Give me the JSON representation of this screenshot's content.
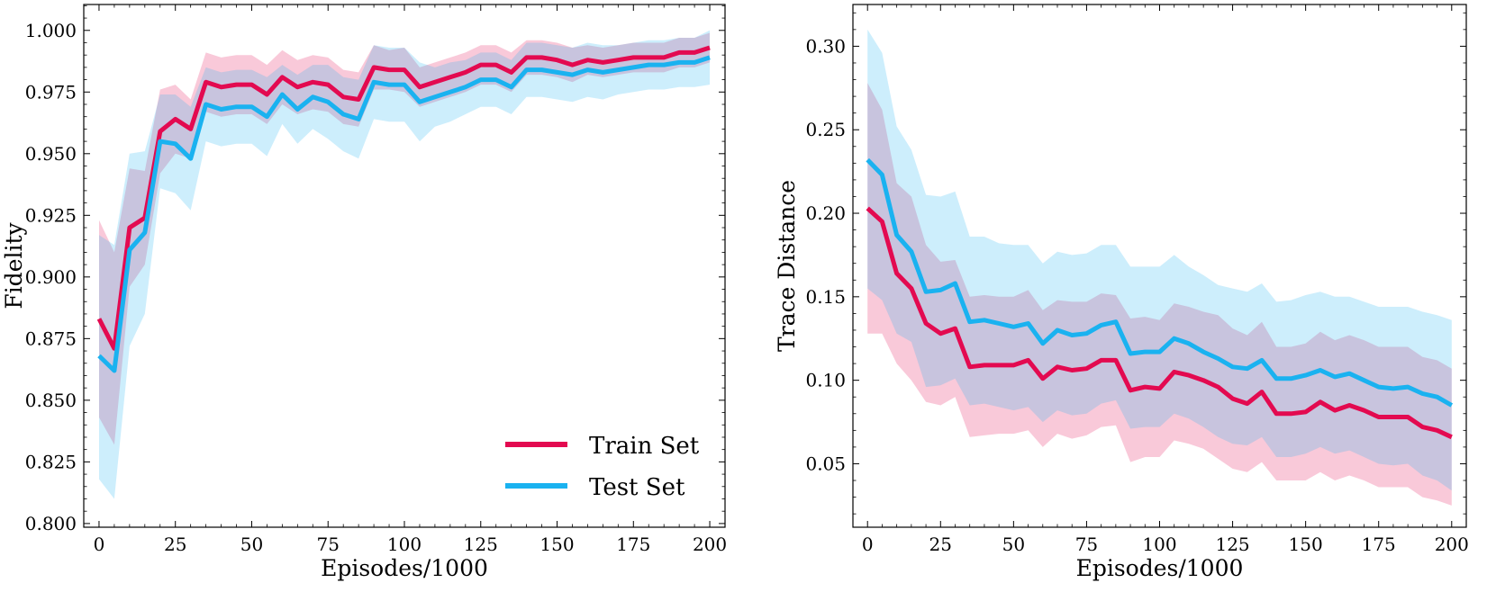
{
  "colors": {
    "train": "#E30A50",
    "test": "#1AB2F0"
  },
  "legend": {
    "train": "Train Set",
    "test": "Test Set"
  },
  "chart_data": [
    {
      "type": "line",
      "xlabel": "Episodes/1000",
      "ylabel": "Fidelity",
      "xlim": [
        -5,
        205
      ],
      "ylim": [
        0.7985,
        1.0105
      ],
      "xticks": [
        0,
        25,
        50,
        75,
        100,
        125,
        150,
        175,
        200
      ],
      "xtick_labels": [
        "0",
        "25",
        "50",
        "75",
        "100",
        "125",
        "150",
        "175",
        "200"
      ],
      "yticks": [
        0.8,
        0.825,
        0.85,
        0.875,
        0.9,
        0.925,
        0.95,
        0.975,
        1.0
      ],
      "ytick_labels": [
        "0.800",
        "0.825",
        "0.850",
        "0.875",
        "0.900",
        "0.925",
        "0.950",
        "0.975",
        "1.000"
      ],
      "legend_position": "bottom-right",
      "x": [
        0,
        5,
        10,
        15,
        20,
        25,
        30,
        35,
        40,
        45,
        50,
        55,
        60,
        65,
        70,
        75,
        80,
        85,
        90,
        95,
        100,
        105,
        110,
        115,
        120,
        125,
        130,
        135,
        140,
        145,
        150,
        155,
        160,
        165,
        170,
        175,
        180,
        185,
        190,
        195,
        200
      ],
      "series": [
        {
          "name": "Train Set",
          "values": [
            0.883,
            0.871,
            0.92,
            0.924,
            0.959,
            0.964,
            0.96,
            0.979,
            0.977,
            0.978,
            0.978,
            0.974,
            0.981,
            0.977,
            0.979,
            0.978,
            0.973,
            0.972,
            0.985,
            0.984,
            0.984,
            0.977,
            0.979,
            0.981,
            0.983,
            0.986,
            0.986,
            0.983,
            0.989,
            0.989,
            0.988,
            0.986,
            0.988,
            0.987,
            0.988,
            0.989,
            0.989,
            0.989,
            0.991,
            0.991,
            0.993
          ],
          "lower": [
            0.843,
            0.832,
            0.896,
            0.905,
            0.942,
            0.95,
            0.948,
            0.967,
            0.965,
            0.966,
            0.966,
            0.962,
            0.97,
            0.966,
            0.968,
            0.967,
            0.962,
            0.961,
            0.976,
            0.976,
            0.975,
            0.969,
            0.971,
            0.973,
            0.975,
            0.978,
            0.978,
            0.975,
            0.982,
            0.982,
            0.981,
            0.979,
            0.982,
            0.981,
            0.982,
            0.983,
            0.983,
            0.983,
            0.985,
            0.985,
            0.987
          ],
          "upper": [
            0.923,
            0.91,
            0.944,
            0.943,
            0.976,
            0.978,
            0.972,
            0.991,
            0.989,
            0.99,
            0.99,
            0.986,
            0.992,
            0.988,
            0.99,
            0.989,
            0.984,
            0.983,
            0.994,
            0.992,
            0.993,
            0.985,
            0.987,
            0.989,
            0.991,
            0.994,
            0.994,
            0.991,
            0.996,
            0.996,
            0.995,
            0.993,
            0.994,
            0.993,
            0.994,
            0.995,
            0.995,
            0.995,
            0.997,
            0.997,
            0.999
          ]
        },
        {
          "name": "Test Set",
          "values": [
            0.868,
            0.862,
            0.911,
            0.918,
            0.955,
            0.954,
            0.948,
            0.97,
            0.968,
            0.969,
            0.969,
            0.965,
            0.974,
            0.968,
            0.973,
            0.971,
            0.966,
            0.964,
            0.979,
            0.978,
            0.978,
            0.971,
            0.973,
            0.975,
            0.977,
            0.98,
            0.98,
            0.977,
            0.984,
            0.984,
            0.983,
            0.982,
            0.984,
            0.983,
            0.984,
            0.985,
            0.986,
            0.986,
            0.987,
            0.987,
            0.989
          ],
          "lower": [
            0.818,
            0.81,
            0.872,
            0.885,
            0.936,
            0.934,
            0.927,
            0.955,
            0.953,
            0.954,
            0.954,
            0.949,
            0.962,
            0.954,
            0.96,
            0.956,
            0.951,
            0.948,
            0.964,
            0.963,
            0.963,
            0.955,
            0.961,
            0.963,
            0.966,
            0.969,
            0.969,
            0.966,
            0.973,
            0.973,
            0.972,
            0.971,
            0.973,
            0.972,
            0.974,
            0.975,
            0.976,
            0.976,
            0.977,
            0.977,
            0.978
          ],
          "upper": [
            0.917,
            0.913,
            0.95,
            0.951,
            0.974,
            0.974,
            0.969,
            0.985,
            0.983,
            0.984,
            0.984,
            0.981,
            0.986,
            0.982,
            0.986,
            0.986,
            0.981,
            0.98,
            0.994,
            0.993,
            0.993,
            0.987,
            0.985,
            0.987,
            0.988,
            0.991,
            0.991,
            0.988,
            0.995,
            0.995,
            0.994,
            0.993,
            0.995,
            0.994,
            0.994,
            0.995,
            0.996,
            0.996,
            0.997,
            0.997,
            1.0
          ]
        }
      ]
    },
    {
      "type": "line",
      "xlabel": "Episodes/1000",
      "ylabel": "Trace Distance",
      "xlim": [
        -5,
        205
      ],
      "ylim": [
        0.012,
        0.325
      ],
      "xticks": [
        0,
        25,
        50,
        75,
        100,
        125,
        150,
        175,
        200
      ],
      "xtick_labels": [
        "0",
        "25",
        "50",
        "75",
        "100",
        "125",
        "150",
        "175",
        "200"
      ],
      "yticks": [
        0.05,
        0.1,
        0.15,
        0.2,
        0.25,
        0.3
      ],
      "ytick_labels": [
        "0.05",
        "0.10",
        "0.15",
        "0.20",
        "0.25",
        "0.30"
      ],
      "x": [
        0,
        5,
        10,
        15,
        20,
        25,
        30,
        35,
        40,
        45,
        50,
        55,
        60,
        65,
        70,
        75,
        80,
        85,
        90,
        95,
        100,
        105,
        110,
        115,
        120,
        125,
        130,
        135,
        140,
        145,
        150,
        155,
        160,
        165,
        170,
        175,
        180,
        185,
        190,
        195,
        200
      ],
      "series": [
        {
          "name": "Train Set",
          "values": [
            0.203,
            0.195,
            0.164,
            0.155,
            0.134,
            0.128,
            0.131,
            0.108,
            0.109,
            0.109,
            0.109,
            0.112,
            0.101,
            0.108,
            0.106,
            0.107,
            0.112,
            0.112,
            0.094,
            0.096,
            0.095,
            0.105,
            0.103,
            0.1,
            0.096,
            0.089,
            0.086,
            0.093,
            0.08,
            0.08,
            0.081,
            0.087,
            0.082,
            0.085,
            0.082,
            0.078,
            0.078,
            0.078,
            0.072,
            0.07,
            0.066
          ],
          "lower": [
            0.128,
            0.128,
            0.11,
            0.1,
            0.087,
            0.085,
            0.09,
            0.066,
            0.067,
            0.068,
            0.068,
            0.07,
            0.06,
            0.068,
            0.065,
            0.067,
            0.072,
            0.073,
            0.051,
            0.054,
            0.054,
            0.064,
            0.062,
            0.059,
            0.053,
            0.047,
            0.045,
            0.051,
            0.04,
            0.04,
            0.04,
            0.045,
            0.04,
            0.043,
            0.04,
            0.036,
            0.036,
            0.036,
            0.03,
            0.028,
            0.025
          ],
          "upper": [
            0.278,
            0.262,
            0.218,
            0.21,
            0.181,
            0.171,
            0.172,
            0.15,
            0.151,
            0.15,
            0.15,
            0.154,
            0.142,
            0.148,
            0.147,
            0.147,
            0.152,
            0.151,
            0.137,
            0.138,
            0.136,
            0.146,
            0.144,
            0.141,
            0.139,
            0.131,
            0.127,
            0.135,
            0.12,
            0.12,
            0.122,
            0.129,
            0.124,
            0.127,
            0.124,
            0.12,
            0.12,
            0.12,
            0.114,
            0.112,
            0.107
          ]
        },
        {
          "name": "Test Set",
          "values": [
            0.232,
            0.223,
            0.187,
            0.177,
            0.153,
            0.154,
            0.158,
            0.135,
            0.136,
            0.134,
            0.132,
            0.134,
            0.122,
            0.13,
            0.127,
            0.128,
            0.133,
            0.135,
            0.116,
            0.117,
            0.117,
            0.125,
            0.122,
            0.117,
            0.113,
            0.108,
            0.107,
            0.112,
            0.101,
            0.101,
            0.103,
            0.106,
            0.102,
            0.104,
            0.1,
            0.096,
            0.095,
            0.096,
            0.092,
            0.09,
            0.085
          ],
          "lower": [
            0.155,
            0.148,
            0.128,
            0.123,
            0.096,
            0.097,
            0.101,
            0.085,
            0.086,
            0.084,
            0.082,
            0.084,
            0.075,
            0.082,
            0.079,
            0.08,
            0.086,
            0.088,
            0.071,
            0.072,
            0.072,
            0.08,
            0.077,
            0.072,
            0.066,
            0.062,
            0.061,
            0.066,
            0.054,
            0.054,
            0.056,
            0.06,
            0.056,
            0.058,
            0.054,
            0.05,
            0.049,
            0.05,
            0.043,
            0.04,
            0.034
          ],
          "upper": [
            0.31,
            0.296,
            0.252,
            0.238,
            0.211,
            0.21,
            0.213,
            0.186,
            0.186,
            0.182,
            0.181,
            0.181,
            0.17,
            0.177,
            0.175,
            0.176,
            0.181,
            0.181,
            0.168,
            0.168,
            0.168,
            0.175,
            0.168,
            0.163,
            0.157,
            0.155,
            0.153,
            0.158,
            0.147,
            0.148,
            0.151,
            0.153,
            0.15,
            0.15,
            0.147,
            0.144,
            0.144,
            0.144,
            0.141,
            0.139,
            0.136
          ]
        }
      ]
    }
  ]
}
